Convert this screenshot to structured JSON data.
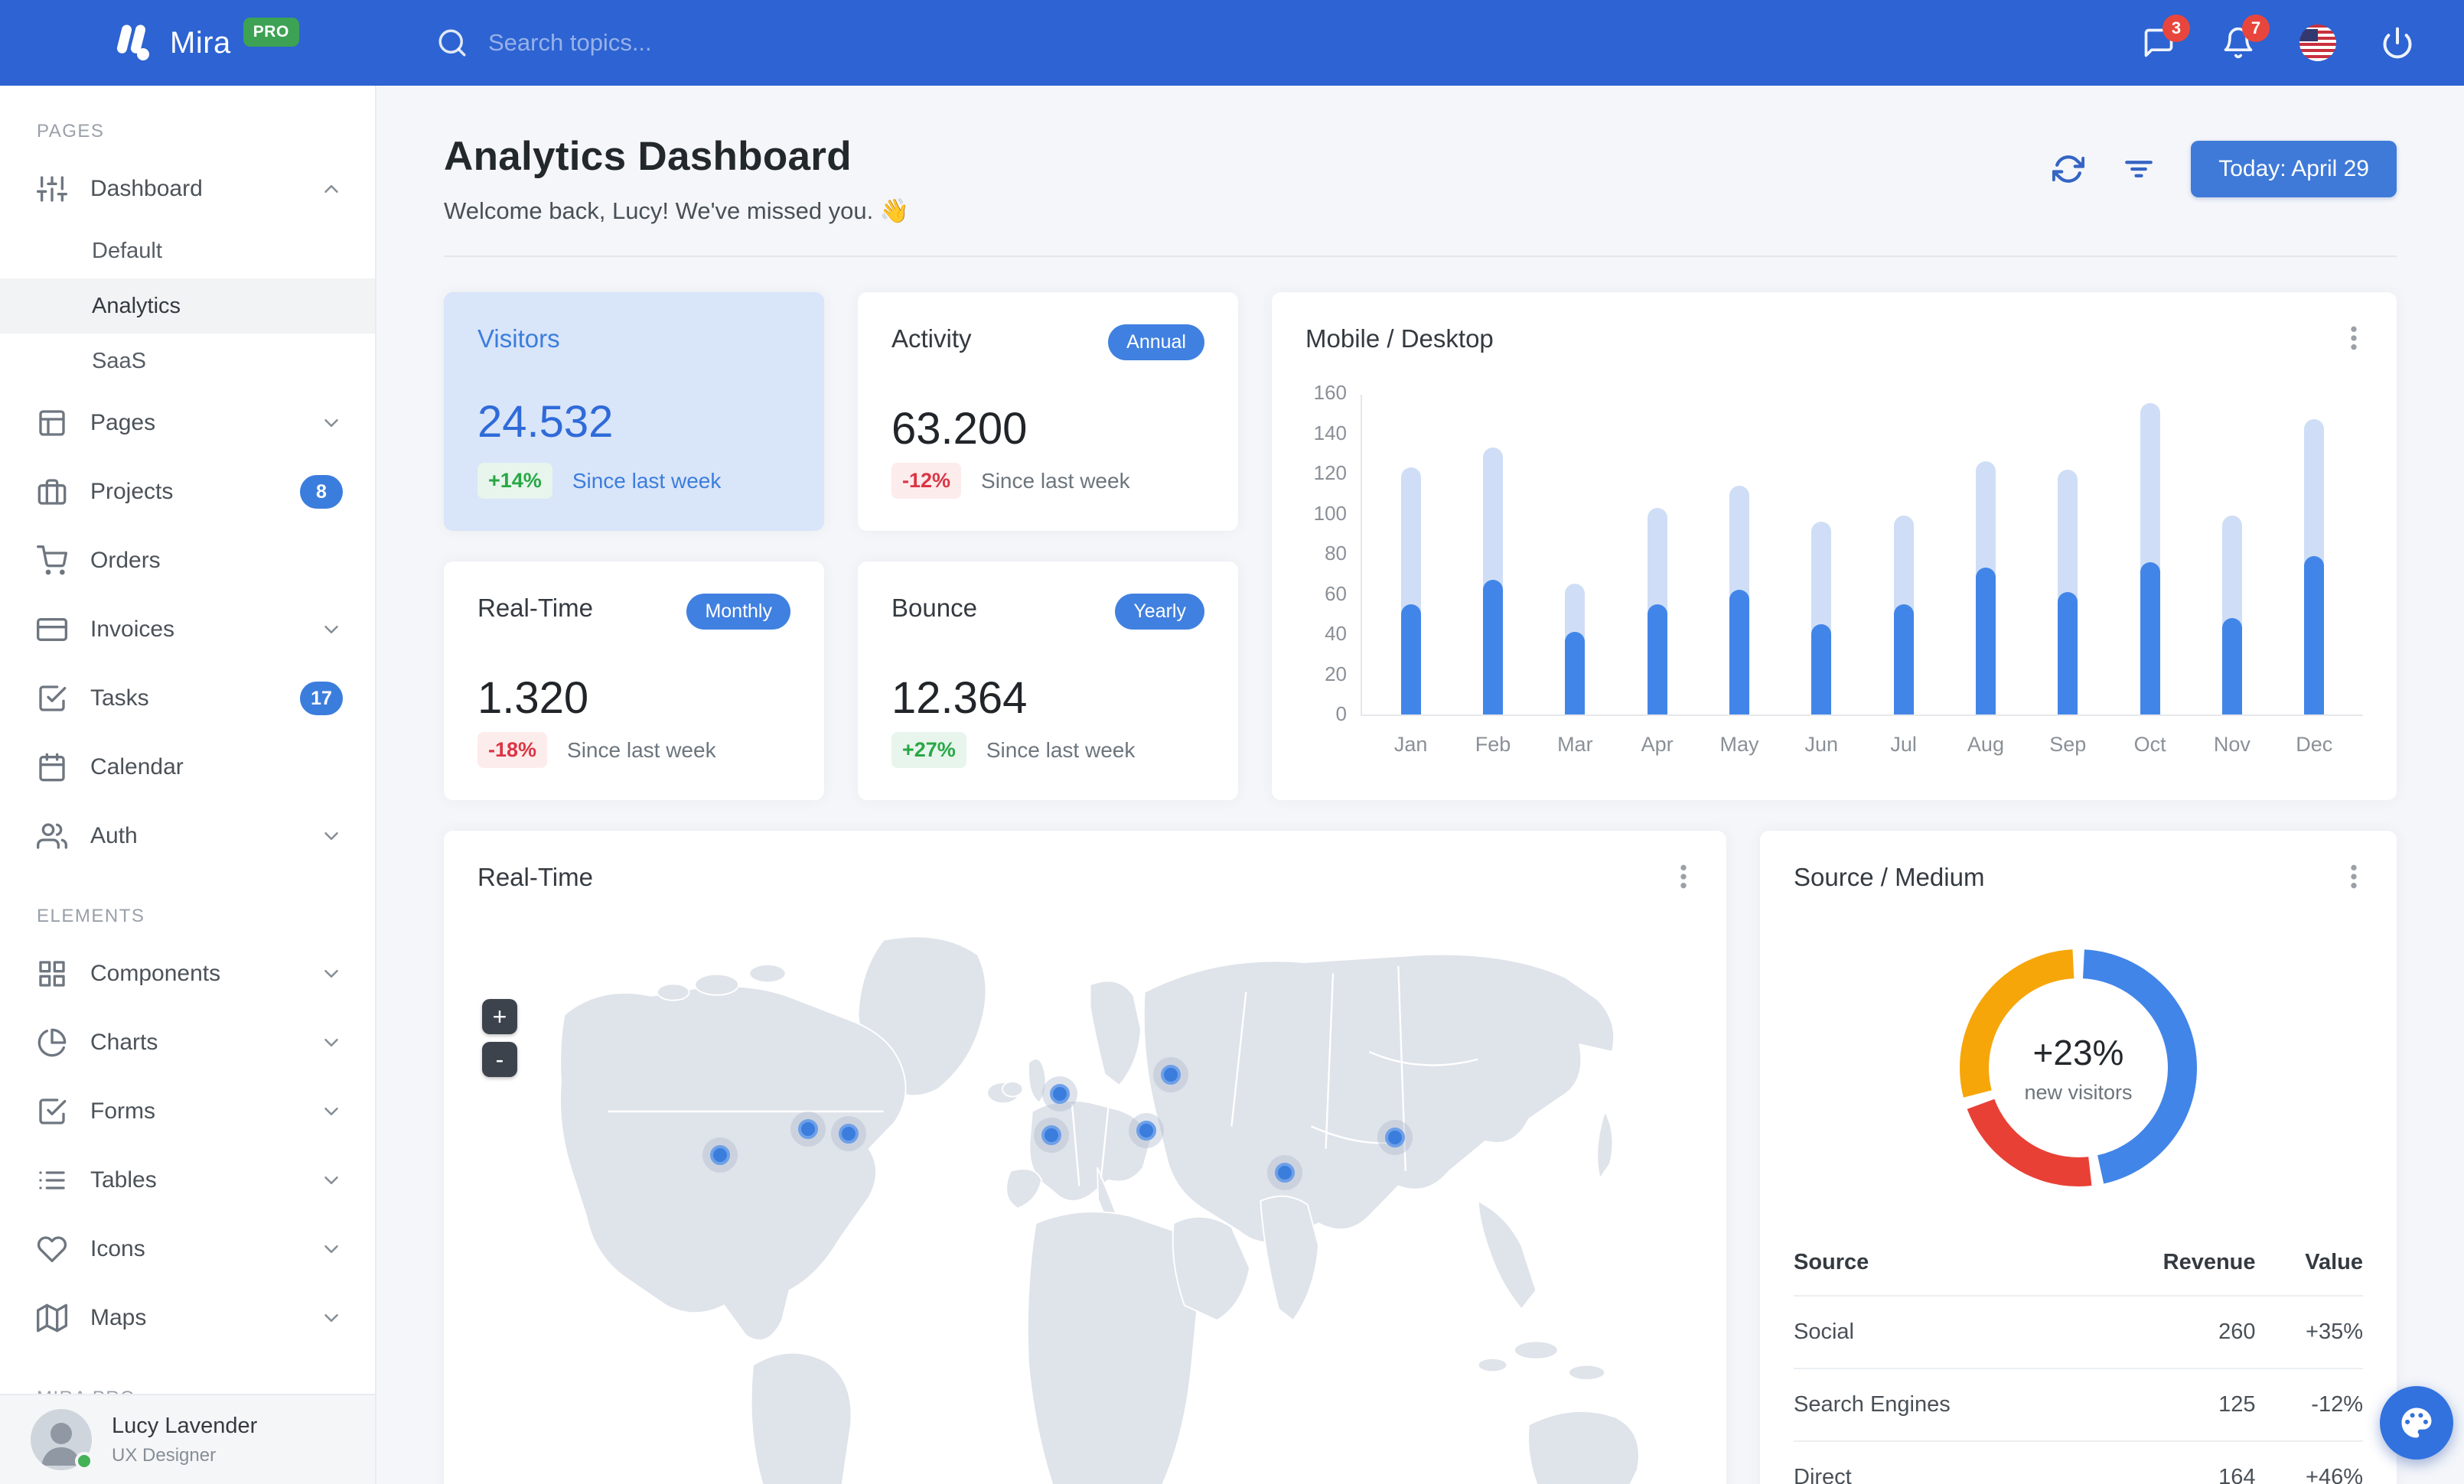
{
  "colors": {
    "primary": "#3b7ddd",
    "navbar": "#2d63d2",
    "badge_red": "#e8463d",
    "green": "#2d9e53",
    "red": "#e8453c",
    "highlight_card_bg": "#d9e5f8"
  },
  "navbar": {
    "brand": "Mira",
    "brand_badge": "PRO",
    "search": {
      "placeholder": "Search topics..."
    },
    "messages_badge": "3",
    "alerts_badge": "7"
  },
  "sidebar": {
    "sections": [
      {
        "label": "PAGES",
        "items": [
          {
            "label": "Dashboard",
            "icon": "sliders",
            "chevron": "up",
            "children": [
              {
                "label": "Default",
                "active": false
              },
              {
                "label": "Analytics",
                "active": true
              },
              {
                "label": "SaaS",
                "active": false
              }
            ]
          },
          {
            "label": "Pages",
            "icon": "layout",
            "chevron": "down"
          },
          {
            "label": "Projects",
            "icon": "briefcase",
            "badge": "8"
          },
          {
            "label": "Orders",
            "icon": "cart"
          },
          {
            "label": "Invoices",
            "icon": "credit-card",
            "chevron": "down"
          },
          {
            "label": "Tasks",
            "icon": "check-square",
            "badge": "17"
          },
          {
            "label": "Calendar",
            "icon": "calendar"
          },
          {
            "label": "Auth",
            "icon": "users",
            "chevron": "down"
          }
        ]
      },
      {
        "label": "ELEMENTS",
        "items": [
          {
            "label": "Components",
            "icon": "grid",
            "chevron": "down"
          },
          {
            "label": "Charts",
            "icon": "pie-chart",
            "chevron": "down"
          },
          {
            "label": "Forms",
            "icon": "check-square",
            "chevron": "down"
          },
          {
            "label": "Tables",
            "icon": "list",
            "chevron": "down"
          },
          {
            "label": "Icons",
            "icon": "heart",
            "chevron": "down"
          },
          {
            "label": "Maps",
            "icon": "map",
            "chevron": "down"
          }
        ]
      },
      {
        "label": "MIRA PRO",
        "items": []
      }
    ],
    "user": {
      "name": "Lucy Lavender",
      "role": "UX Designer"
    }
  },
  "header": {
    "title": "Analytics Dashboard",
    "subtitle": "Welcome back, Lucy! We've missed you. 👋",
    "date_button": "Today: April 29"
  },
  "stats": [
    {
      "title": "Visitors",
      "value": "24.532",
      "delta": "+14%",
      "delta_dir": "up",
      "note": "Since last week",
      "highlight": true
    },
    {
      "title": "Activity",
      "pill": "Annual",
      "value": "63.200",
      "delta": "-12%",
      "delta_dir": "down",
      "note": "Since last week",
      "highlight": false
    },
    {
      "title": "Real-Time",
      "pill": "Monthly",
      "value": "1.320",
      "delta": "-18%",
      "delta_dir": "down",
      "note": "Since last week",
      "highlight": false
    },
    {
      "title": "Bounce",
      "pill": "Yearly",
      "value": "12.364",
      "delta": "+27%",
      "delta_dir": "up",
      "note": "Since last week",
      "highlight": false
    }
  ],
  "panels": {
    "map_title": "Real-Time"
  },
  "map": {
    "zoom_in": "+",
    "zoom_out": "-",
    "markers": [
      [
        335,
        330
      ],
      [
        456,
        296
      ],
      [
        512,
        302
      ],
      [
        803,
        250
      ],
      [
        792,
        304
      ],
      [
        956,
        225
      ],
      [
        922,
        298
      ],
      [
        1113,
        353
      ],
      [
        1265,
        307
      ]
    ]
  },
  "chart_data": [
    {
      "type": "bar",
      "stacked": true,
      "title": "Mobile / Desktop",
      "categories": [
        "Jan",
        "Feb",
        "Mar",
        "Apr",
        "May",
        "Jun",
        "Jul",
        "Aug",
        "Sep",
        "Oct",
        "Nov",
        "Dec"
      ],
      "series": [
        {
          "name": "Mobile",
          "color": "#4285e8",
          "values": [
            55,
            67,
            41,
            55,
            62,
            45,
            55,
            73,
            61,
            76,
            48,
            79
          ]
        },
        {
          "name": "Desktop",
          "color": "#cfdef6",
          "values": [
            68,
            66,
            24,
            48,
            52,
            51,
            44,
            53,
            61,
            79,
            51,
            68
          ]
        }
      ],
      "xlabel": "",
      "ylabel": "",
      "ylim": [
        0,
        160
      ],
      "ytick_step": 20,
      "grid": false,
      "legend": "none"
    },
    {
      "type": "pie",
      "title": "Source / Medium",
      "labels": [
        "Social",
        "Search Engines",
        "Direct"
      ],
      "values": [
        260,
        125,
        164
      ],
      "colors": [
        "#4285e8",
        "#e94036",
        "#f6a609"
      ],
      "center_title": "+23%",
      "center_sub": "new visitors",
      "donut": true
    },
    {
      "type": "table",
      "title": "Source / Medium table",
      "columns": [
        "Source",
        "Revenue",
        "Value"
      ],
      "rows": [
        [
          "Social",
          "260",
          "+35%"
        ],
        [
          "Search Engines",
          "125",
          "-12%"
        ],
        [
          "Direct",
          "164",
          "+46%"
        ]
      ]
    }
  ]
}
